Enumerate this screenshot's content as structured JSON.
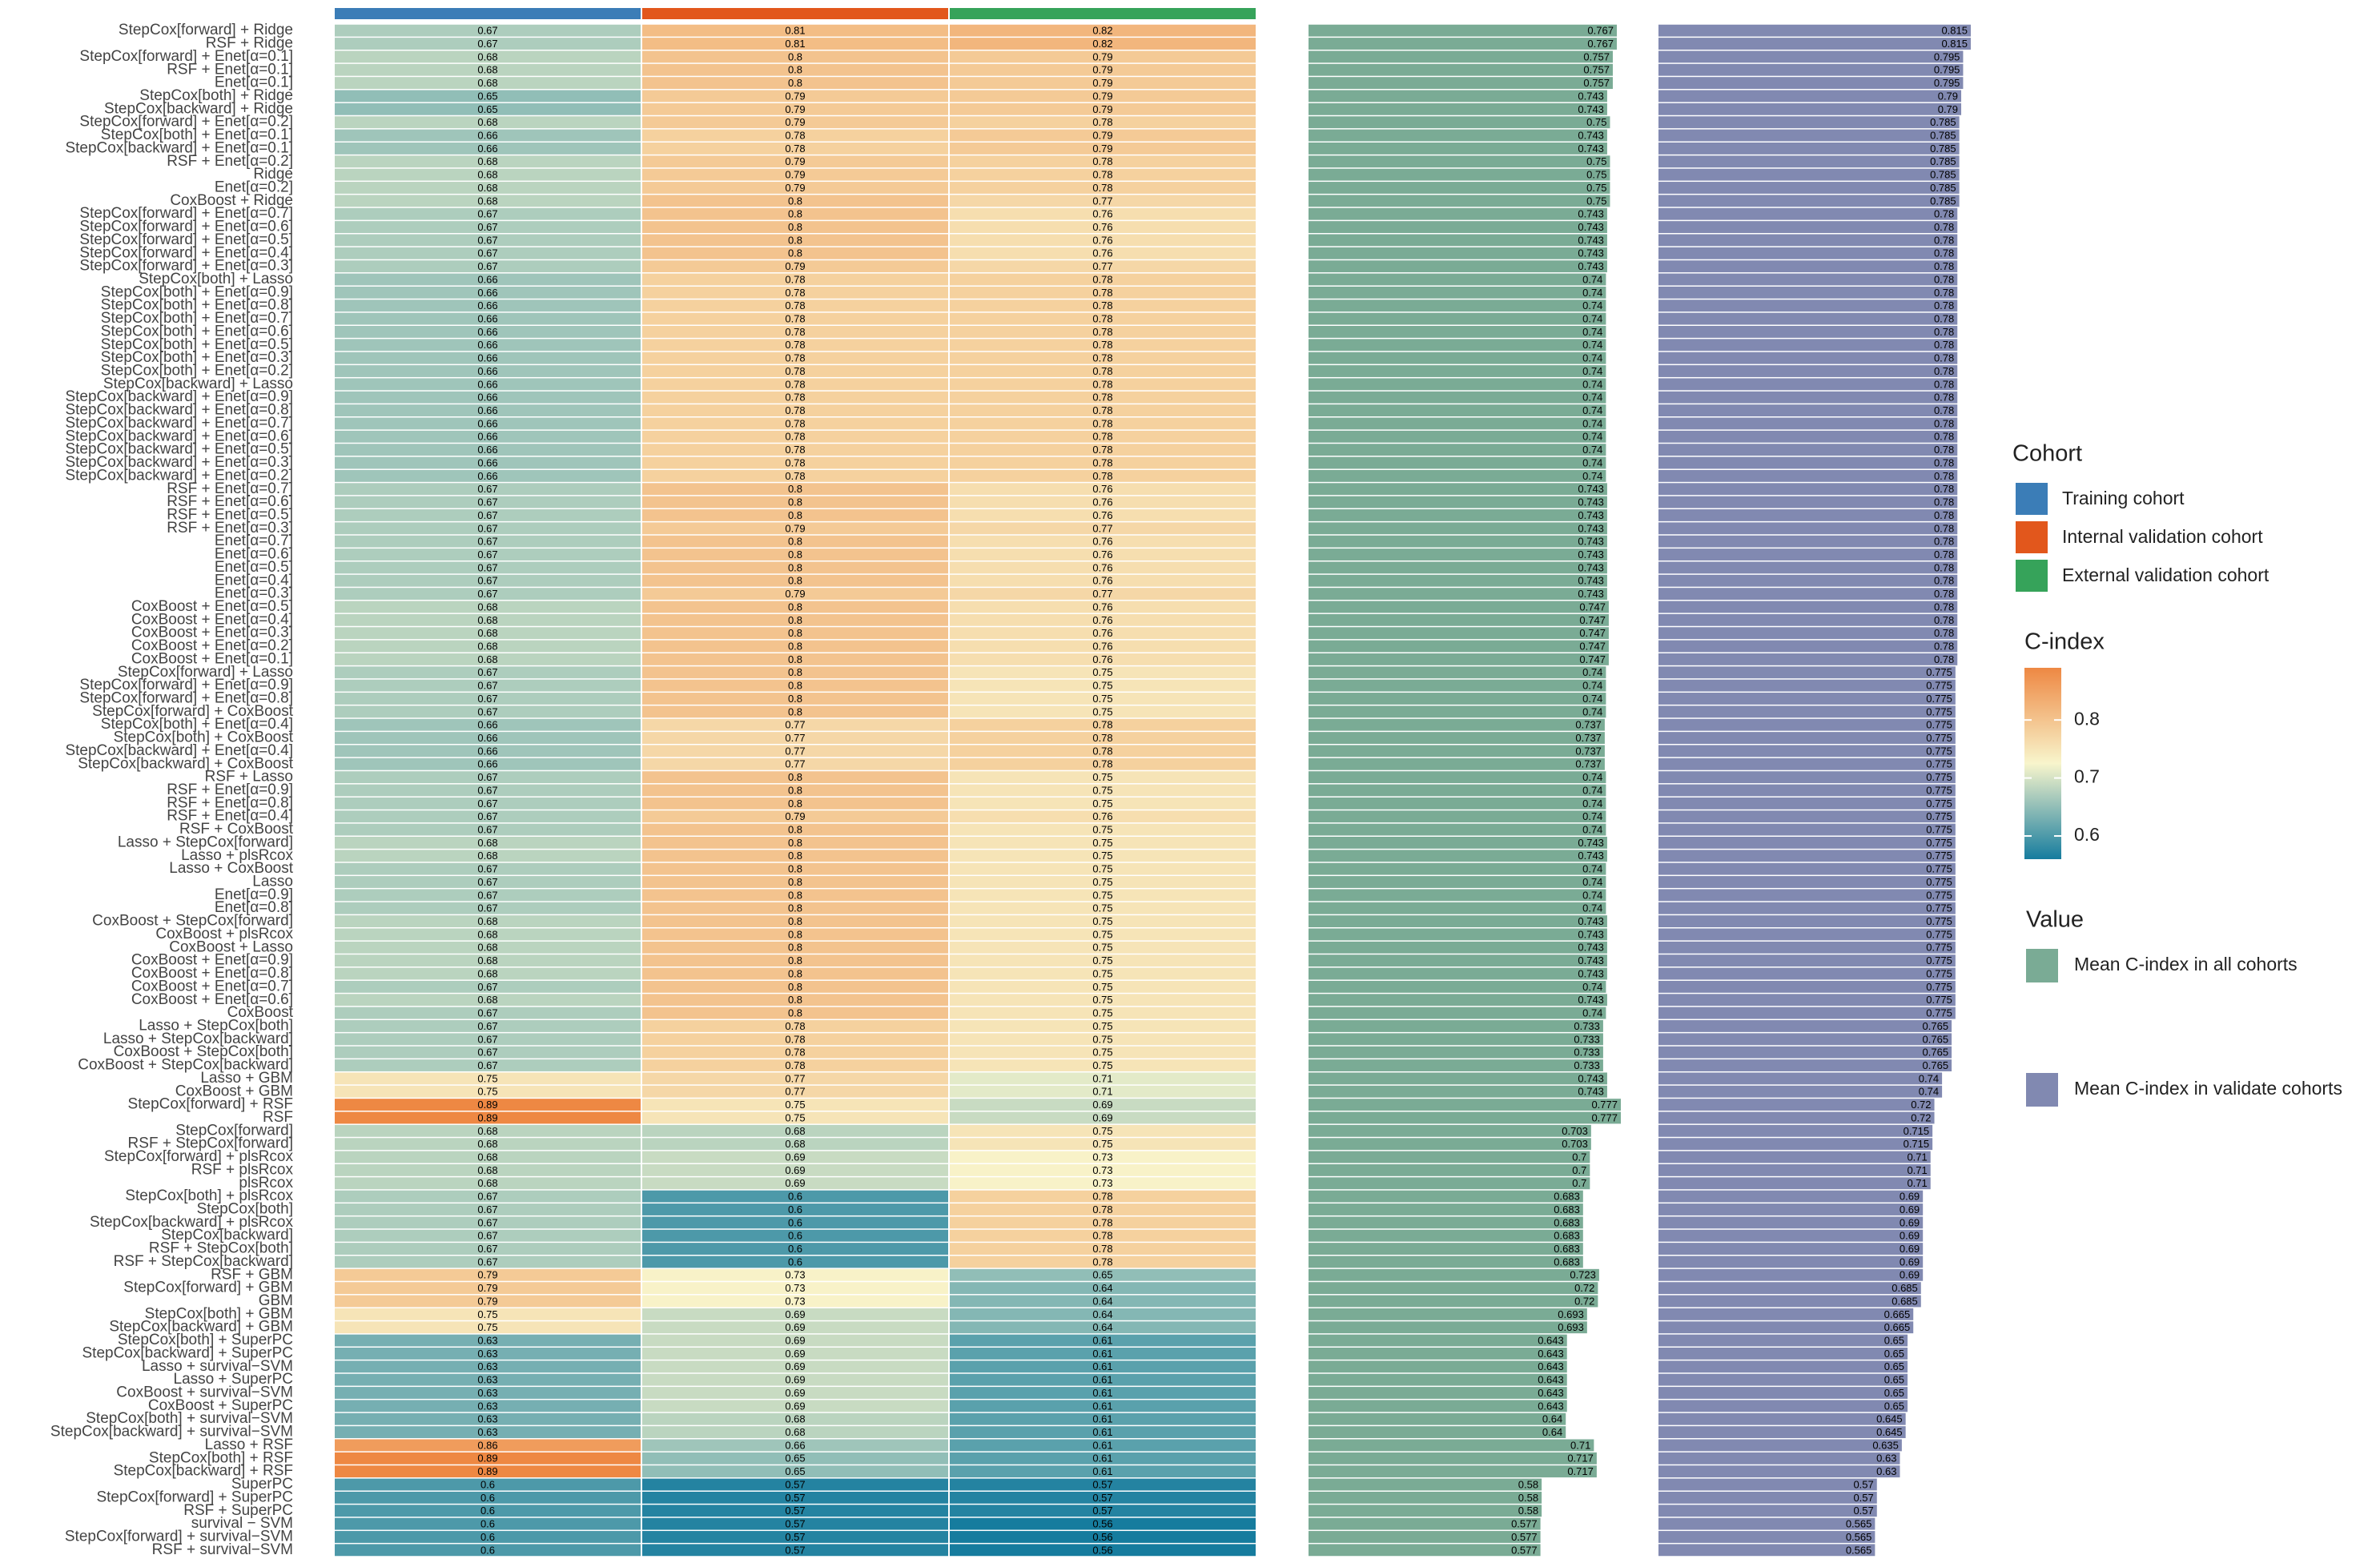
{
  "chart_data": [
    {
      "type": "heatmap",
      "legend_title": "Cohort",
      "colorbar_title": "C-index",
      "clim": [
        0.56,
        0.89
      ],
      "cticks": [
        0.6,
        0.7,
        0.8
      ],
      "colorscale": [
        "#167c9e",
        "#f8f5cc",
        "#ee8843"
      ],
      "categories": [
        "StepCox[forward] + Ridge",
        "RSF + Ridge",
        "StepCox[forward] + Enet[α=0.1]",
        "RSF + Enet[α=0.1]",
        "Enet[α=0.1]",
        "StepCox[both] + Ridge",
        "StepCox[backward] + Ridge",
        "StepCox[forward] + Enet[α=0.2]",
        "StepCox[both] + Enet[α=0.1]",
        "StepCox[backward] + Enet[α=0.1]",
        "RSF + Enet[α=0.2]",
        "Ridge",
        "Enet[α=0.2]",
        "CoxBoost + Ridge",
        "StepCox[forward] + Enet[α=0.7]",
        "StepCox[forward] + Enet[α=0.6]",
        "StepCox[forward] + Enet[α=0.5]",
        "StepCox[forward] + Enet[α=0.4]",
        "StepCox[forward] + Enet[α=0.3]",
        "StepCox[both] + Lasso",
        "StepCox[both] + Enet[α=0.9]",
        "StepCox[both] + Enet[α=0.8]",
        "StepCox[both] + Enet[α=0.7]",
        "StepCox[both] + Enet[α=0.6]",
        "StepCox[both] + Enet[α=0.5]",
        "StepCox[both] + Enet[α=0.3]",
        "StepCox[both] + Enet[α=0.2]",
        "StepCox[backward] + Lasso",
        "StepCox[backward] + Enet[α=0.9]",
        "StepCox[backward] + Enet[α=0.8]",
        "StepCox[backward] + Enet[α=0.7]",
        "StepCox[backward] + Enet[α=0.6]",
        "StepCox[backward] + Enet[α=0.5]",
        "StepCox[backward] + Enet[α=0.3]",
        "StepCox[backward] + Enet[α=0.2]",
        "RSF + Enet[α=0.7]",
        "RSF + Enet[α=0.6]",
        "RSF + Enet[α=0.5]",
        "RSF + Enet[α=0.3]",
        "Enet[α=0.7]",
        "Enet[α=0.6]",
        "Enet[α=0.5]",
        "Enet[α=0.4]",
        "Enet[α=0.3]",
        "CoxBoost + Enet[α=0.5]",
        "CoxBoost + Enet[α=0.4]",
        "CoxBoost + Enet[α=0.3]",
        "CoxBoost + Enet[α=0.2]",
        "CoxBoost + Enet[α=0.1]",
        "StepCox[forward] + Lasso",
        "StepCox[forward] + Enet[α=0.9]",
        "StepCox[forward] + Enet[α=0.8]",
        "StepCox[forward] + CoxBoost",
        "StepCox[both] + Enet[α=0.4]",
        "StepCox[both] + CoxBoost",
        "StepCox[backward] + Enet[α=0.4]",
        "StepCox[backward] + CoxBoost",
        "RSF + Lasso",
        "RSF + Enet[α=0.9]",
        "RSF + Enet[α=0.8]",
        "RSF + Enet[α=0.4]",
        "RSF + CoxBoost",
        "Lasso + StepCox[forward]",
        "Lasso + plsRcox",
        "Lasso + CoxBoost",
        "Lasso",
        "Enet[α=0.9]",
        "Enet[α=0.8]",
        "CoxBoost + StepCox[forward]",
        "CoxBoost + plsRcox",
        "CoxBoost + Lasso",
        "CoxBoost + Enet[α=0.9]",
        "CoxBoost + Enet[α=0.8]",
        "CoxBoost + Enet[α=0.7]",
        "CoxBoost + Enet[α=0.6]",
        "CoxBoost",
        "Lasso + StepCox[both]",
        "Lasso + StepCox[backward]",
        "CoxBoost + StepCox[both]",
        "CoxBoost + StepCox[backward]",
        "Lasso + GBM",
        "CoxBoost + GBM",
        "StepCox[forward] + RSF",
        "RSF",
        "StepCox[forward]",
        "RSF + StepCox[forward]",
        "StepCox[forward] + plsRcox",
        "RSF + plsRcox",
        "plsRcox",
        "StepCox[both] + plsRcox",
        "StepCox[both]",
        "StepCox[backward] + plsRcox",
        "StepCox[backward]",
        "RSF + StepCox[both]",
        "RSF + StepCox[backward]",
        "RSF + GBM",
        "StepCox[forward] + GBM",
        "GBM",
        "StepCox[both] + GBM",
        "StepCox[backward] + GBM",
        "StepCox[both] + SuperPC",
        "StepCox[backward] + SuperPC",
        "Lasso + survival−SVM",
        "Lasso + SuperPC",
        "CoxBoost + survival−SVM",
        "CoxBoost + SuperPC",
        "StepCox[both] + survival−SVM",
        "StepCox[backward] + survival−SVM",
        "Lasso + RSF",
        "StepCox[both] + RSF",
        "StepCox[backward] + RSF",
        "SuperPC",
        "StepCox[forward] + SuperPC",
        "RSF + SuperPC",
        "survival − SVM",
        "StepCox[forward] + survival−SVM",
        "RSF + survival−SVM"
      ],
      "series": [
        {
          "name": "Training cohort",
          "color": "#3b7db7",
          "values": [
            0.67,
            0.67,
            0.68,
            0.68,
            0.68,
            0.65,
            0.65,
            0.68,
            0.66,
            0.66,
            0.68,
            0.68,
            0.68,
            0.68,
            0.67,
            0.67,
            0.67,
            0.67,
            0.67,
            0.66,
            0.66,
            0.66,
            0.66,
            0.66,
            0.66,
            0.66,
            0.66,
            0.66,
            0.66,
            0.66,
            0.66,
            0.66,
            0.66,
            0.66,
            0.66,
            0.67,
            0.67,
            0.67,
            0.67,
            0.67,
            0.67,
            0.67,
            0.67,
            0.67,
            0.68,
            0.68,
            0.68,
            0.68,
            0.68,
            0.67,
            0.67,
            0.67,
            0.67,
            0.66,
            0.66,
            0.66,
            0.66,
            0.67,
            0.67,
            0.67,
            0.67,
            0.67,
            0.68,
            0.68,
            0.67,
            0.67,
            0.67,
            0.67,
            0.68,
            0.68,
            0.68,
            0.68,
            0.68,
            0.67,
            0.68,
            0.67,
            0.67,
            0.67,
            0.67,
            0.67,
            0.75,
            0.75,
            0.89,
            0.89,
            0.68,
            0.68,
            0.68,
            0.68,
            0.68,
            0.67,
            0.67,
            0.67,
            0.67,
            0.67,
            0.67,
            0.79,
            0.79,
            0.79,
            0.75,
            0.75,
            0.63,
            0.63,
            0.63,
            0.63,
            0.63,
            0.63,
            0.63,
            0.63,
            0.86,
            0.89,
            0.89,
            0.6,
            0.6,
            0.6,
            0.6,
            0.6,
            0.6
          ]
        },
        {
          "name": "Internal validation cohort",
          "color": "#e2571c",
          "values": [
            0.81,
            0.81,
            0.8,
            0.8,
            0.8,
            0.79,
            0.79,
            0.79,
            0.78,
            0.78,
            0.79,
            0.79,
            0.79,
            0.8,
            0.8,
            0.8,
            0.8,
            0.8,
            0.79,
            0.78,
            0.78,
            0.78,
            0.78,
            0.78,
            0.78,
            0.78,
            0.78,
            0.78,
            0.78,
            0.78,
            0.78,
            0.78,
            0.78,
            0.78,
            0.78,
            0.8,
            0.8,
            0.8,
            0.79,
            0.8,
            0.8,
            0.8,
            0.8,
            0.79,
            0.8,
            0.8,
            0.8,
            0.8,
            0.8,
            0.8,
            0.8,
            0.8,
            0.8,
            0.77,
            0.77,
            0.77,
            0.77,
            0.8,
            0.8,
            0.8,
            0.79,
            0.8,
            0.8,
            0.8,
            0.8,
            0.8,
            0.8,
            0.8,
            0.8,
            0.8,
            0.8,
            0.8,
            0.8,
            0.8,
            0.8,
            0.8,
            0.78,
            0.78,
            0.78,
            0.78,
            0.77,
            0.77,
            0.75,
            0.75,
            0.68,
            0.68,
            0.69,
            0.69,
            0.69,
            0.6,
            0.6,
            0.6,
            0.6,
            0.6,
            0.6,
            0.73,
            0.73,
            0.73,
            0.69,
            0.69,
            0.69,
            0.69,
            0.69,
            0.69,
            0.69,
            0.69,
            0.68,
            0.68,
            0.66,
            0.65,
            0.65,
            0.57,
            0.57,
            0.57,
            0.57,
            0.57,
            0.57
          ]
        },
        {
          "name": "External validation cohort",
          "color": "#36a35a",
          "values": [
            0.82,
            0.82,
            0.79,
            0.79,
            0.79,
            0.79,
            0.79,
            0.78,
            0.79,
            0.79,
            0.78,
            0.78,
            0.78,
            0.77,
            0.76,
            0.76,
            0.76,
            0.76,
            0.77,
            0.78,
            0.78,
            0.78,
            0.78,
            0.78,
            0.78,
            0.78,
            0.78,
            0.78,
            0.78,
            0.78,
            0.78,
            0.78,
            0.78,
            0.78,
            0.78,
            0.76,
            0.76,
            0.76,
            0.77,
            0.76,
            0.76,
            0.76,
            0.76,
            0.77,
            0.76,
            0.76,
            0.76,
            0.76,
            0.76,
            0.75,
            0.75,
            0.75,
            0.75,
            0.78,
            0.78,
            0.78,
            0.78,
            0.75,
            0.75,
            0.75,
            0.76,
            0.75,
            0.75,
            0.75,
            0.75,
            0.75,
            0.75,
            0.75,
            0.75,
            0.75,
            0.75,
            0.75,
            0.75,
            0.75,
            0.75,
            0.75,
            0.75,
            0.75,
            0.75,
            0.75,
            0.71,
            0.71,
            0.69,
            0.69,
            0.75,
            0.75,
            0.73,
            0.73,
            0.73,
            0.78,
            0.78,
            0.78,
            0.78,
            0.78,
            0.78,
            0.65,
            0.64,
            0.64,
            0.64,
            0.64,
            0.61,
            0.61,
            0.61,
            0.61,
            0.61,
            0.61,
            0.61,
            0.61,
            0.61,
            0.61,
            0.61,
            0.57,
            0.57,
            0.57,
            0.56,
            0.56,
            0.56
          ]
        }
      ]
    },
    {
      "type": "bar",
      "legend_title": "Value",
      "series": [
        {
          "name": "Mean C-index in all cohorts",
          "color": "#7aab95",
          "values": [
            0.767,
            0.767,
            0.757,
            0.757,
            0.757,
            0.743,
            0.743,
            0.75,
            0.743,
            0.743,
            0.75,
            0.75,
            0.75,
            0.75,
            0.743,
            0.743,
            0.743,
            0.743,
            0.743,
            0.74,
            0.74,
            0.74,
            0.74,
            0.74,
            0.74,
            0.74,
            0.74,
            0.74,
            0.74,
            0.74,
            0.74,
            0.74,
            0.74,
            0.74,
            0.74,
            0.743,
            0.743,
            0.743,
            0.743,
            0.743,
            0.743,
            0.743,
            0.743,
            0.743,
            0.747,
            0.747,
            0.747,
            0.747,
            0.747,
            0.74,
            0.74,
            0.74,
            0.74,
            0.737,
            0.737,
            0.737,
            0.737,
            0.74,
            0.74,
            0.74,
            0.74,
            0.74,
            0.743,
            0.743,
            0.74,
            0.74,
            0.74,
            0.74,
            0.743,
            0.743,
            0.743,
            0.743,
            0.743,
            0.74,
            0.743,
            0.74,
            0.733,
            0.733,
            0.733,
            0.733,
            0.743,
            0.743,
            0.777,
            0.777,
            0.703,
            0.703,
            0.7,
            0.7,
            0.7,
            0.683,
            0.683,
            0.683,
            0.683,
            0.683,
            0.683,
            0.723,
            0.72,
            0.72,
            0.693,
            0.693,
            0.643,
            0.643,
            0.643,
            0.643,
            0.643,
            0.643,
            0.64,
            0.64,
            0.71,
            0.717,
            0.717,
            0.58,
            0.58,
            0.58,
            0.577,
            0.577,
            0.577
          ]
        }
      ]
    },
    {
      "type": "bar",
      "series": [
        {
          "name": "Mean C-index in validate cohorts",
          "color": "#8189b1",
          "values": [
            0.815,
            0.815,
            0.795,
            0.795,
            0.795,
            0.79,
            0.79,
            0.785,
            0.785,
            0.785,
            0.785,
            0.785,
            0.785,
            0.785,
            0.78,
            0.78,
            0.78,
            0.78,
            0.78,
            0.78,
            0.78,
            0.78,
            0.78,
            0.78,
            0.78,
            0.78,
            0.78,
            0.78,
            0.78,
            0.78,
            0.78,
            0.78,
            0.78,
            0.78,
            0.78,
            0.78,
            0.78,
            0.78,
            0.78,
            0.78,
            0.78,
            0.78,
            0.78,
            0.78,
            0.78,
            0.78,
            0.78,
            0.78,
            0.78,
            0.775,
            0.775,
            0.775,
            0.775,
            0.775,
            0.775,
            0.775,
            0.775,
            0.775,
            0.775,
            0.775,
            0.775,
            0.775,
            0.775,
            0.775,
            0.775,
            0.775,
            0.775,
            0.775,
            0.775,
            0.775,
            0.775,
            0.775,
            0.775,
            0.775,
            0.775,
            0.775,
            0.765,
            0.765,
            0.765,
            0.765,
            0.74,
            0.74,
            0.72,
            0.72,
            0.715,
            0.715,
            0.71,
            0.71,
            0.71,
            0.69,
            0.69,
            0.69,
            0.69,
            0.69,
            0.69,
            0.69,
            0.685,
            0.685,
            0.665,
            0.665,
            0.65,
            0.65,
            0.65,
            0.65,
            0.65,
            0.65,
            0.645,
            0.645,
            0.635,
            0.63,
            0.63,
            0.57,
            0.57,
            0.57,
            0.565,
            0.565,
            0.565
          ]
        }
      ]
    }
  ]
}
